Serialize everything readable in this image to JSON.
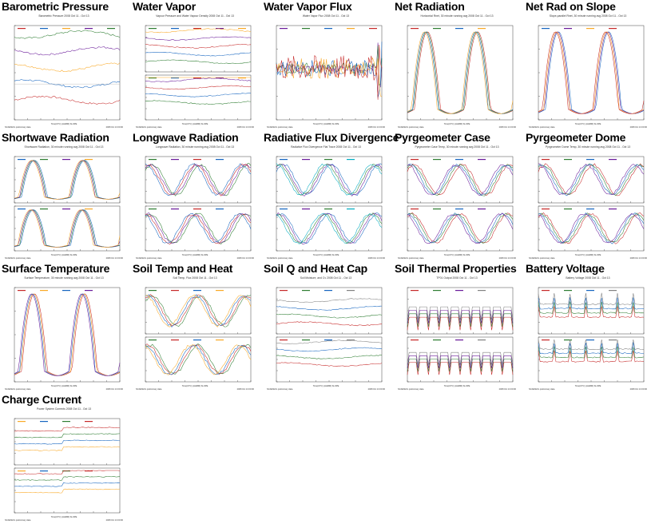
{
  "panels": [
    {
      "title": "Barometric Pressure",
      "subtitle": "Barometric Pressure 2008 Oct 11 - Oct 13",
      "split": false,
      "colors": [
        "#c62828",
        "#1565c0",
        "#f9a825",
        "#6a1b9a",
        "#2e7d32"
      ],
      "shape": "flat"
    },
    {
      "title": "Water Vapor",
      "subtitle": "Vapour Pressure and Water Vapour Density 2008 Oct 11 - Oct 13",
      "split": true,
      "colors": [
        "#2e7d32",
        "#1565c0",
        "#c62828",
        "#6a1b9a",
        "#f9a825"
      ],
      "shape": "flat"
    },
    {
      "title": "Water Vapor Flux",
      "subtitle": "Water Vapor Flux 2008 Oct 11 - Oct 13",
      "split": false,
      "colors": [
        "#6a1b9a",
        "#2e7d32",
        "#1565c0",
        "#f9a825",
        "#c62828"
      ],
      "shape": "noise"
    },
    {
      "title": "Net Radiation",
      "subtitle": "Horizontal Rnet, 30 minute running avg 2008 Oct 11 - Oct 13",
      "split": false,
      "colors": [
        "#c62828",
        "#2e7d32",
        "#1565c0",
        "#f9a825"
      ],
      "shape": "diurnal"
    },
    {
      "title": "Net Rad on Slope",
      "subtitle": "Slope-parallel Rnet, 30 minute running avg 2008 Oct 11 - Oct 13",
      "split": false,
      "colors": [
        "#1565c0",
        "#6a1b9a",
        "#f9a825",
        "#c62828"
      ],
      "shape": "diurnal"
    },
    {
      "title": "Shortwave Radiation",
      "subtitle": "Shortwave Radiation, 30 minute running avg 2008 Oct 11 - Oct 13",
      "split": true,
      "colors": [
        "#1565c0",
        "#2e7d32",
        "#6a1b9a",
        "#f9a825"
      ],
      "shape": "diurnal"
    },
    {
      "title": "Longwave Radiation",
      "subtitle": "Longwave Radiation, 30 minute running avg 2008 Oct 11 - Oct 13",
      "split": true,
      "colors": [
        "#2e7d32",
        "#6a1b9a",
        "#c62828",
        "#1565c0"
      ],
      "shape": "wave"
    },
    {
      "title": "Radiative Flux Divergence",
      "subtitle": "Radiative Flux Divergence Flat Trace 2008 Oct 11 - Oct 13",
      "split": true,
      "colors": [
        "#1565c0",
        "#6a1b9a",
        "#2e7d32",
        "#00acc1"
      ],
      "shape": "wave"
    },
    {
      "title": "Pyrgeometer Case",
      "subtitle": "Pyrgeometer Case Temp, 30 minute running avg 2008 Oct 11 - Oct 13",
      "split": true,
      "colors": [
        "#c62828",
        "#2e7d32",
        "#1565c0",
        "#6a1b9a"
      ],
      "shape": "wave"
    },
    {
      "title": "Pyrgeometer Dome",
      "subtitle": "Pyrgeometer Dome Temp, 30 minute running avg 2008 Oct 11 - Oct 13",
      "split": true,
      "colors": [
        "#c62828",
        "#2e7d32",
        "#1565c0",
        "#6a1b9a"
      ],
      "shape": "wave"
    },
    {
      "title": "Surface Temperature",
      "subtitle": "Surface Temperature, 30 minute running avg 2008 Oct 11 - Oct 13",
      "split": false,
      "colors": [
        "#c62828",
        "#f9a825",
        "#1565c0",
        "#6a1b9a"
      ],
      "shape": "diurnal"
    },
    {
      "title": "Soil Temp and Heat",
      "subtitle": "Soil Temp, Flux 2008 Oct 11 - Oct 13",
      "split": true,
      "colors": [
        "#2e7d32",
        "#c62828",
        "#1565c0",
        "#f9a825"
      ],
      "shape": "wave"
    },
    {
      "title": "Soil Q and Heat Cap",
      "subtitle": "Soil Moisture, and Cv 2008 Oct 11 - Oct 13",
      "split": true,
      "colors": [
        "#c62828",
        "#2e7d32",
        "#1565c0",
        "#808080"
      ],
      "shape": "flat"
    },
    {
      "title": "Soil Thermal Properties",
      "subtitle": "TP01 Output 2008 Oct 11 - Oct 13",
      "split": true,
      "colors": [
        "#c62828",
        "#2e7d32",
        "#6a1b9a",
        "#808080"
      ],
      "shape": "spikes"
    },
    {
      "title": "Battery Voltage",
      "subtitle": "Battery Voltage 2008 Oct 11 - Oct 13",
      "split": true,
      "colors": [
        "#c62828",
        "#2e7d32",
        "#1565c0",
        "#808080"
      ],
      "shape": "drops"
    },
    {
      "title": "Charge Current",
      "subtitle": "Power System Currents 2008 Oct 11 - Oct 13",
      "split": true,
      "colors": [
        "#f9a825",
        "#1565c0",
        "#2e7d32",
        "#c62828"
      ],
      "shape": "steps"
    }
  ],
  "footer_left": "NCAR/EOL preliminary data",
  "footer_center": "Time(UTC) (HHMM) SLOPE",
  "footer_right": "2008 Oct 13 00:00"
}
